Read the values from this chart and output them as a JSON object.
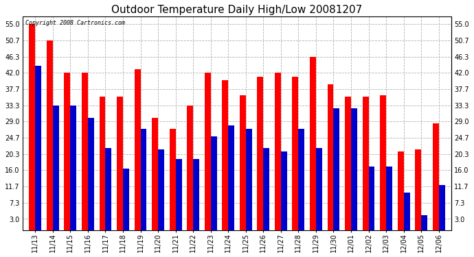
{
  "title": "Outdoor Temperature Daily High/Low 20081207",
  "copyright": "Copyright 2008 Cartronics.com",
  "dates": [
    "11/13",
    "11/14",
    "11/15",
    "11/16",
    "11/17",
    "11/18",
    "11/19",
    "11/20",
    "11/21",
    "11/22",
    "11/23",
    "11/24",
    "11/25",
    "11/26",
    "11/27",
    "11/28",
    "11/29",
    "11/30",
    "12/01",
    "12/02",
    "12/03",
    "12/04",
    "12/05",
    "12/06"
  ],
  "highs": [
    55.0,
    50.7,
    42.0,
    42.0,
    35.6,
    35.6,
    43.0,
    30.0,
    27.0,
    33.3,
    42.0,
    40.0,
    36.0,
    41.0,
    42.0,
    41.0,
    46.3,
    39.0,
    35.6,
    35.6,
    36.0,
    21.0,
    21.5,
    28.5
  ],
  "lows": [
    44.0,
    33.3,
    33.3,
    30.0,
    22.0,
    16.5,
    27.0,
    21.5,
    19.0,
    19.0,
    25.0,
    28.0,
    27.0,
    22.0,
    21.0,
    27.0,
    22.0,
    32.5,
    32.5,
    17.0,
    17.0,
    10.0,
    4.0,
    12.0
  ],
  "high_color": "#ff0000",
  "low_color": "#0000cc",
  "background_color": "#ffffff",
  "plot_background": "#ffffff",
  "grid_color": "#b0b0b0",
  "yticks": [
    3.0,
    7.3,
    11.7,
    16.0,
    20.3,
    24.7,
    29.0,
    33.3,
    37.7,
    42.0,
    46.3,
    50.7,
    55.0
  ],
  "ylim": [
    0.0,
    57.0
  ],
  "title_fontsize": 11,
  "tick_fontsize": 7,
  "bar_width": 0.35,
  "figwidth": 6.9,
  "figheight": 3.75,
  "dpi": 100
}
